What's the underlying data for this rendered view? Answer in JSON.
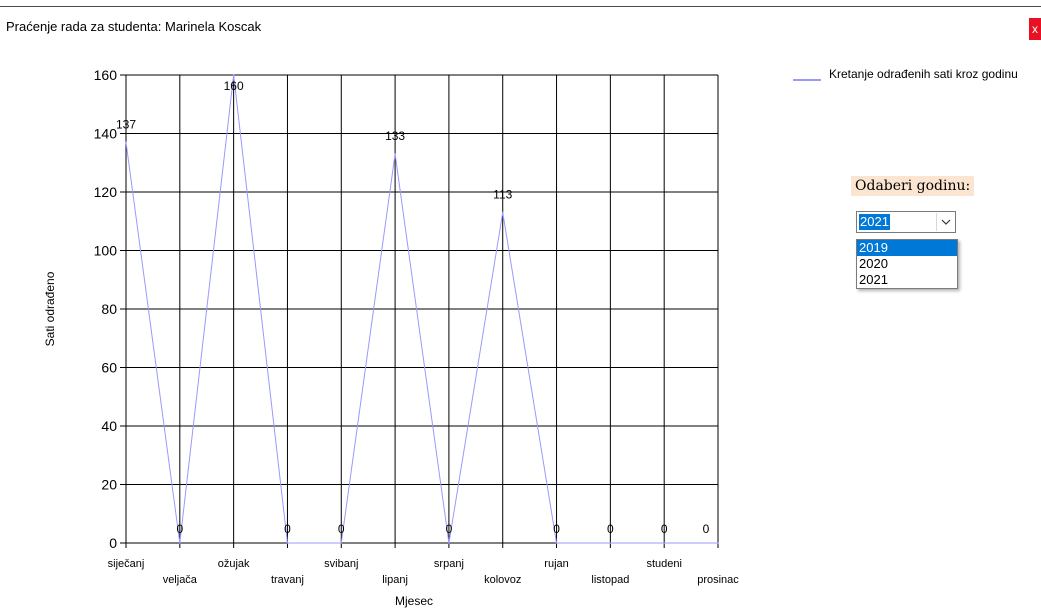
{
  "window": {
    "title": "Praćenje rada za studenta: Marinela Koscak",
    "close_label": "x"
  },
  "colors": {
    "series": "#9999ff",
    "close_button": "#e81123",
    "selection": "#0078d7",
    "label_bg": "#fbe5d0"
  },
  "legend": {
    "label": "Kretanje odrađenih sati kroz godinu"
  },
  "year_picker": {
    "label": "Odaberi godinu:",
    "selected": "2021",
    "options": [
      "2019",
      "2020",
      "2021"
    ],
    "highlighted_option": "2019",
    "arrow_icon": "chevron-down-icon"
  },
  "chart_data": {
    "type": "line",
    "categories": [
      "siječanj",
      "veljača",
      "ožujak",
      "travanj",
      "svibanj",
      "lipanj",
      "srpanj",
      "kolovoz",
      "rujan",
      "listopad",
      "studeni",
      "prosinac"
    ],
    "series": [
      {
        "name": "Kretanje odrađenih sati kroz godinu",
        "values": [
          137,
          0,
          160,
          0,
          0,
          133,
          0,
          113,
          0,
          0,
          0,
          0
        ]
      }
    ],
    "data_labels": [
      "137",
      "0",
      "160",
      "0",
      "0",
      "133",
      "0",
      "113",
      "0",
      "0",
      "0",
      "0"
    ],
    "xlabel": "Mjesec",
    "ylabel": "Sati odrađeno",
    "ylim": [
      0,
      160
    ],
    "yticks": [
      0,
      20,
      40,
      60,
      80,
      100,
      120,
      140,
      160
    ],
    "grid": true,
    "legend_position": "top-right"
  }
}
